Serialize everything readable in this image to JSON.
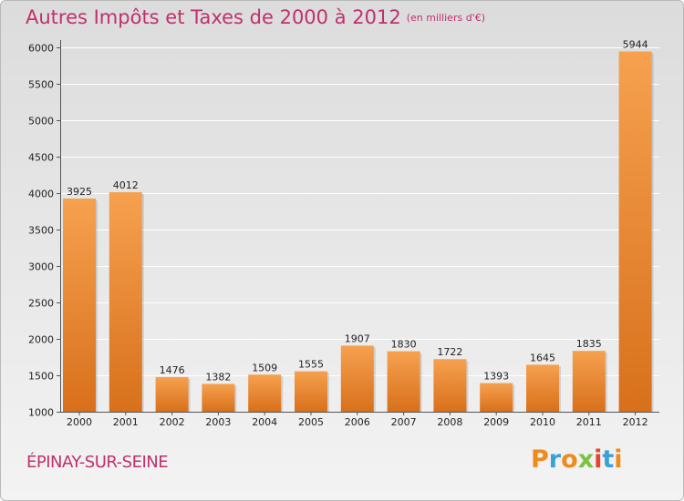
{
  "header": {
    "title": "Autres Impôts et Taxes de 2000 à 2012",
    "unit": "(en milliers d'€)"
  },
  "footer": {
    "commune": "ÉPINAY-SUR-SEINE",
    "logo": "Proxiti"
  },
  "colors": {
    "title": "#c0306e",
    "bar_top": "#f6a14f",
    "bar_bottom": "#d8701b",
    "logo_letters": [
      "#f08a1c",
      "#3aa0d8",
      "#f08a1c",
      "#7cc242",
      "#e8432f",
      "#3aa0d8",
      "#f08a1c"
    ]
  },
  "chart_data": {
    "type": "bar",
    "title": "Autres Impôts et Taxes de 2000 à 2012",
    "subtitle": "(en milliers d'€)",
    "xlabel": "",
    "ylabel": "",
    "categories": [
      "2000",
      "2001",
      "2002",
      "2003",
      "2004",
      "2005",
      "2006",
      "2007",
      "2008",
      "2009",
      "2010",
      "2011",
      "2012"
    ],
    "values": [
      3925,
      4012,
      1476,
      1382,
      1509,
      1555,
      1907,
      1830,
      1722,
      1393,
      1645,
      1835,
      5944
    ],
    "ylim": [
      1000,
      6000
    ],
    "yticks": [
      1000,
      1500,
      2000,
      2500,
      3000,
      3500,
      4000,
      4500,
      5000,
      5500,
      6000
    ],
    "grid": true,
    "legend": "none"
  }
}
